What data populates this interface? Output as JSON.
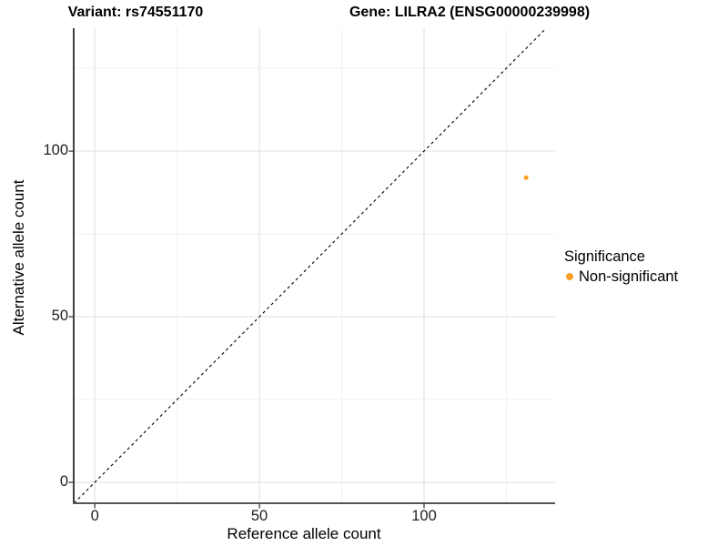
{
  "chart_data": {
    "type": "scatter",
    "title_variant": "Variant: rs74551170",
    "title_gene": "Gene: LILRA2 (ENSG00000239998)",
    "xlabel": "Reference allele count",
    "ylabel": "Alternative allele count",
    "xticks": [
      0,
      50,
      100
    ],
    "yticks": [
      0,
      50,
      100
    ],
    "x_minor_ticks": [
      25,
      75,
      125
    ],
    "y_minor_ticks": [
      25,
      75,
      125
    ],
    "xlim": [
      -6.4,
      139.8
    ],
    "ylim": [
      -6.3,
      137.1
    ],
    "grid": "major and minor, light gray, white background",
    "identity_line": {
      "equation": "y = x",
      "style": "dashed",
      "color": "#000000"
    },
    "series": [
      {
        "name": "Non-significant",
        "color": "#F9A229",
        "points": [
          {
            "x": 131,
            "y": 92
          }
        ]
      }
    ],
    "legend": {
      "title": "Significance",
      "position": "right",
      "entries": [
        {
          "label": "Non-significant",
          "color": "#F9A229"
        }
      ]
    },
    "colors": {
      "point": "#F9A229",
      "grid_major": "#e4e4e4",
      "grid_minor": "#f1f1f1",
      "y_axis_line": "#000000",
      "x_axis_line": "#565656"
    }
  }
}
